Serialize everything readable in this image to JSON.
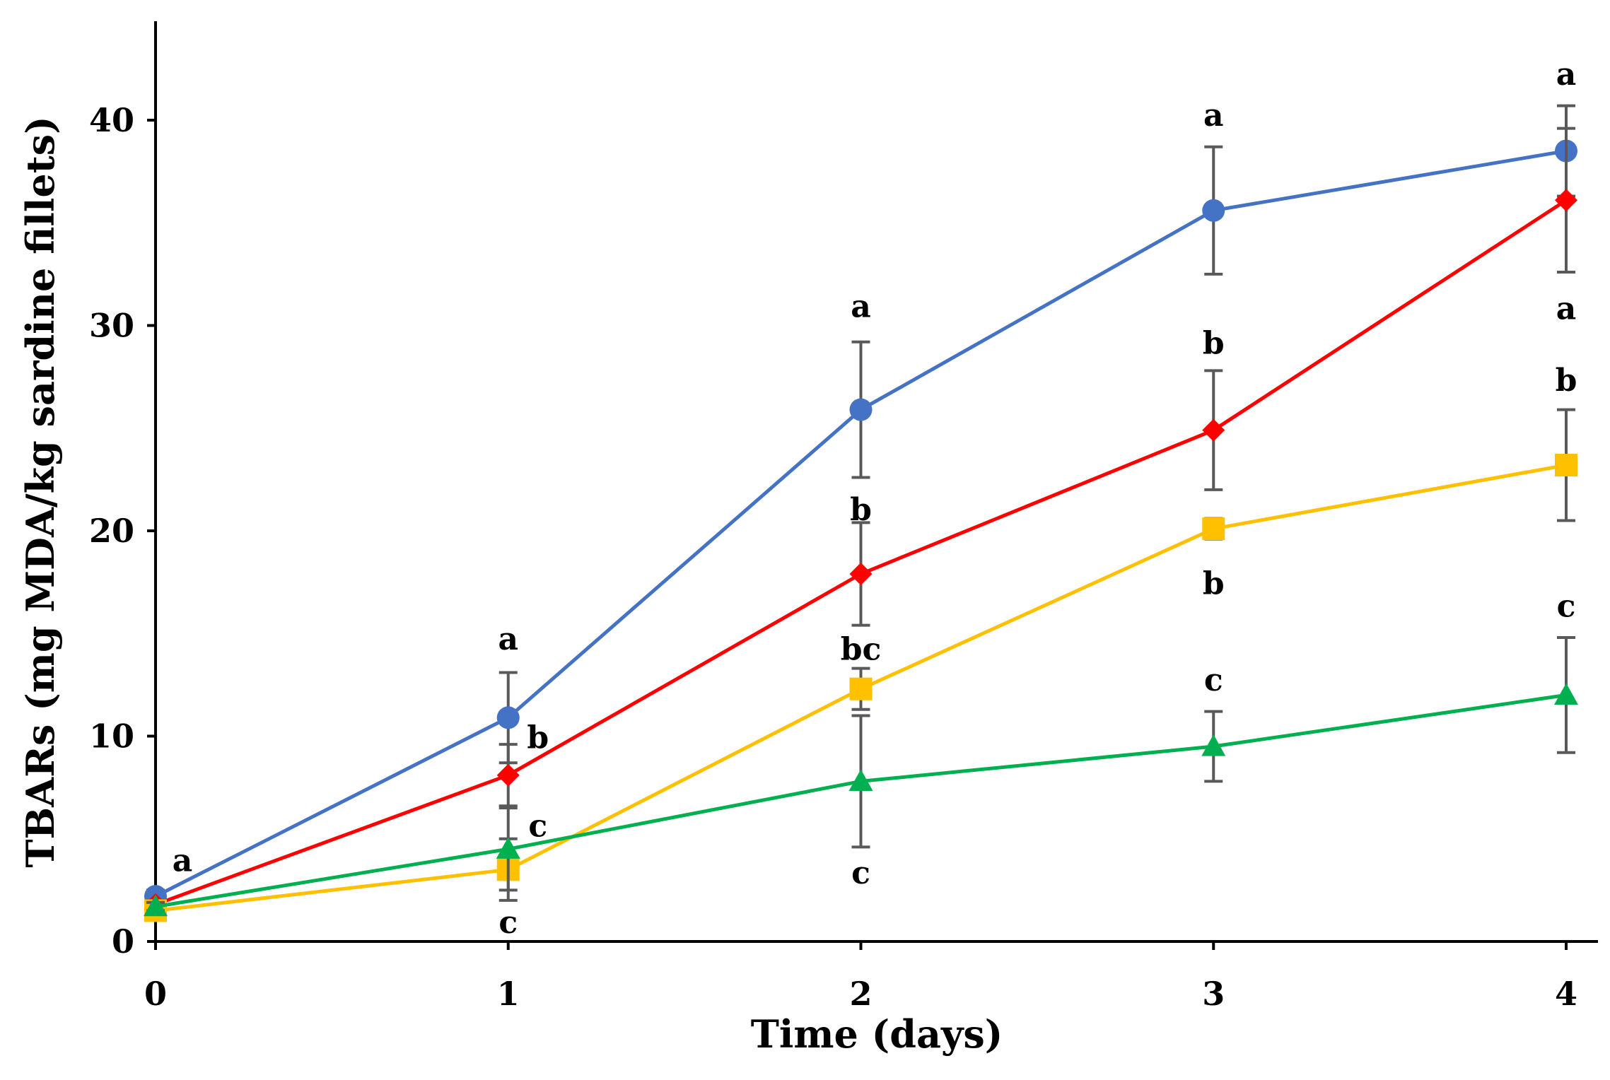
{
  "chart_data": {
    "type": "line",
    "title": "",
    "xlabel": "Time (days)",
    "ylabel": "TBARs (mg MDA/kg sardine fillets)",
    "xlim": [
      0,
      4
    ],
    "ylim": [
      0,
      45
    ],
    "x": [
      0,
      1,
      2,
      3,
      4
    ],
    "xticks": [
      "0",
      "1",
      "2",
      "3",
      "4"
    ],
    "yticks": [
      {
        "value": 0,
        "label": "0"
      },
      {
        "value": 10,
        "label": "10"
      },
      {
        "value": 20,
        "label": "20"
      },
      {
        "value": 30,
        "label": "30"
      },
      {
        "value": 40,
        "label": "40"
      }
    ],
    "grid": false,
    "legend": "none",
    "series": [
      {
        "name": "blue",
        "color": "#4472C4",
        "marker": "circle",
        "values": [
          2.2,
          10.9,
          25.9,
          35.6,
          38.5
        ],
        "errors": [
          0.3,
          2.2,
          3.3,
          3.1,
          2.2
        ]
      },
      {
        "name": "red",
        "color": "#FF0000",
        "marker": "diamond",
        "values": [
          1.8,
          8.1,
          17.9,
          24.9,
          36.1
        ],
        "errors": [
          0.2,
          1.5,
          2.5,
          2.9,
          3.5
        ]
      },
      {
        "name": "yellow",
        "color": "#FFC000",
        "marker": "square",
        "values": [
          1.5,
          3.5,
          12.3,
          20.1,
          23.2
        ],
        "errors": [
          0.2,
          1.5,
          1.0,
          0.5,
          2.7
        ]
      },
      {
        "name": "green",
        "color": "#00B050",
        "marker": "triangle",
        "values": [
          1.7,
          4.5,
          7.8,
          9.5,
          12.0
        ],
        "errors": [
          0.2,
          2.0,
          3.2,
          1.7,
          2.8
        ]
      }
    ],
    "annotations": [
      {
        "text": "a",
        "x": 0,
        "y": 3.9
      },
      {
        "text": "a",
        "x": 1,
        "y": 14.7
      },
      {
        "text": "b",
        "x": 1,
        "y": 9.9
      },
      {
        "text": "c",
        "x": 1,
        "y": 5.6
      },
      {
        "text": "c",
        "x": 1,
        "y": 0.9
      },
      {
        "text": "a",
        "x": 2,
        "y": 30.9
      },
      {
        "text": "b",
        "x": 2,
        "y": 21.0
      },
      {
        "text": "bc",
        "x": 2,
        "y": 14.2
      },
      {
        "text": "c",
        "x": 2,
        "y": 3.3
      },
      {
        "text": "a",
        "x": 3,
        "y": 40.2
      },
      {
        "text": "b",
        "x": 3,
        "y": 29.1
      },
      {
        "text": "b",
        "x": 3,
        "y": 17.4
      },
      {
        "text": "c",
        "x": 3,
        "y": 12.7
      },
      {
        "text": "a",
        "x": 4,
        "y": 42.2
      },
      {
        "text": "a",
        "x": 4,
        "y": 30.8
      },
      {
        "text": "b",
        "x": 4,
        "y": 27.3
      },
      {
        "text": "c",
        "x": 4,
        "y": 16.3
      }
    ]
  }
}
